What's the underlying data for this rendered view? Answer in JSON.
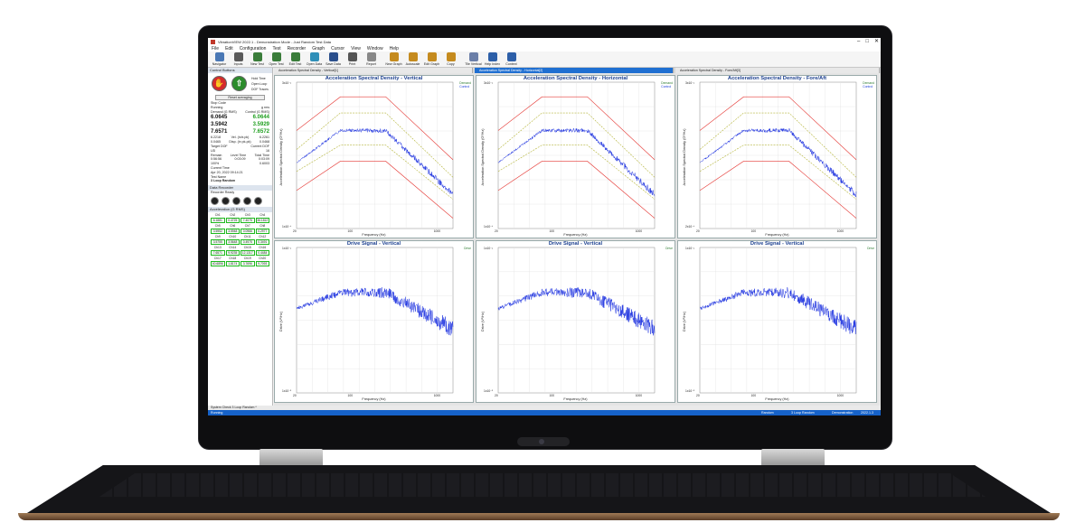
{
  "window": {
    "title": "VibrationVIEW 2022.1 - Demonstration Mode - Just Random Test Data",
    "controls": [
      "–",
      "□",
      "✕"
    ]
  },
  "menu": [
    "File",
    "Edit",
    "Configuration",
    "Test",
    "Recorder",
    "Graph",
    "Cursor",
    "View",
    "Window",
    "Help"
  ],
  "toolbar": [
    {
      "label": "Navigator",
      "icon": "navigator-icon",
      "color": "#4a78b5"
    },
    {
      "label": "Inputs",
      "icon": "inputs-icon",
      "color": "#5a5a5a"
    },
    {
      "label": "New Test",
      "icon": "new-test-icon",
      "color": "#3a7d3a"
    },
    {
      "label": "Open Test",
      "icon": "open-test-icon",
      "color": "#3a7d3a"
    },
    {
      "label": "Edit Test",
      "icon": "edit-test-icon",
      "color": "#3a7d3a"
    },
    {
      "label": "Open Data",
      "icon": "open-data-icon",
      "color": "#2f8fb8"
    },
    {
      "label": "Save Data",
      "icon": "save-data-icon",
      "color": "#2b4f8c"
    },
    {
      "label": "Print",
      "icon": "print-icon",
      "color": "#555"
    },
    {
      "label": "Report",
      "icon": "report-icon",
      "color": "#888"
    },
    {
      "label": "New Graph",
      "icon": "new-graph-icon",
      "color": "#c58b1e"
    },
    {
      "label": "Autoscale",
      "icon": "autoscale-icon",
      "color": "#c58b1e"
    },
    {
      "label": "Edit Graph",
      "icon": "edit-graph-icon",
      "color": "#c58b1e"
    },
    {
      "label": "Copy",
      "icon": "copy-icon",
      "color": "#c58b1e"
    },
    {
      "label": "Tile Vertical",
      "icon": "tile-vertical-icon",
      "color": "#6b7fa8"
    },
    {
      "label": "Help Index",
      "icon": "help-index-icon",
      "color": "#2d5fa8"
    },
    {
      "label": "Context",
      "icon": "context-help-icon",
      "color": "#2d5fa8"
    }
  ],
  "left_panel": {
    "header": "Control Buttons",
    "options": [
      "Hold Time",
      "Open Loop",
      "DOF Traces"
    ],
    "reset_label": "Reset averaging",
    "stop_code_label": "Stop Code",
    "status": "Running",
    "status_unit": "g rms",
    "col_demand": "Demand (G RMS)",
    "col_control": "Control (G RMS)",
    "rows": [
      {
        "demand": "6.0645",
        "control": "6.0644"
      },
      {
        "demand": "3.5942",
        "control": "3.5929"
      },
      {
        "demand": "7.6571",
        "control": "7.6572"
      }
    ],
    "stats": [
      [
        "6.2218",
        "Vel. (in/s pk)",
        "6.2261"
      ],
      [
        "0.0465",
        "Disp. (in pk-pk)",
        "0.0468"
      ]
    ],
    "dof_label": "Target DOF",
    "dof_value": "Current DOF",
    "dof_ux": "UD",
    "dof_n": "16",
    "time_headers": [
      "Remain",
      "Level Time",
      "Total Time"
    ],
    "time_values": [
      "0:56:56",
      "0:03:09",
      "0:03:09"
    ],
    "level_pct": "100%",
    "level_value": "0.6003",
    "current_time_label": "Current Time",
    "current_time": "Apr 20, 2022 09:14:21",
    "test_name_label": "Test Name",
    "test_name": "3 Loop Random",
    "recorder_header": "Data Recorder",
    "recorder_status": "Recorder Ready",
    "accel_header": "Acceleration (G RMS)",
    "channels": [
      {
        "ch": "Ch1",
        "val": "6.1881"
      },
      {
        "ch": "Ch2",
        "val": "0.4725"
      },
      {
        "ch": "Ch3",
        "val": "7.4075"
      },
      {
        "ch": "Ch4",
        "val": "36.1812"
      },
      {
        "ch": "Ch5",
        "val": "3.5952"
      },
      {
        "ch": "Ch6",
        "val": "3.5948"
      },
      {
        "ch": "Ch7",
        "val": "0.0966"
      },
      {
        "ch": "Ch8",
        "val": "0.2977"
      },
      {
        "ch": "Ch9",
        "val": "3.5755"
      },
      {
        "ch": "Ch10",
        "val": "3.5648"
      },
      {
        "ch": "Ch11",
        "val": "0.4975"
      },
      {
        "ch": "Ch12",
        "val": "0.3491"
      },
      {
        "ch": "Ch13",
        "val": "7.6571"
      },
      {
        "ch": "Ch14",
        "val": "9.9235"
      },
      {
        "ch": "Ch15",
        "val": "12.1317"
      },
      {
        "ch": "Ch16",
        "val": "0.4484"
      },
      {
        "ch": "Ch17",
        "val": "40.6896"
      },
      {
        "ch": "Ch18",
        "val": "1.8174"
      },
      {
        "ch": "Ch19",
        "val": "3.7696"
      },
      {
        "ch": "Ch20",
        "val": "9.7093"
      }
    ]
  },
  "tabs": [
    {
      "label": "Acceleration Spectral Density - Vertical[1]"
    },
    {
      "label": "Acceleration Spectral Density - Horizontal[2]"
    },
    {
      "label": "Acceleration Spectral Density - Fore/Aft[3]"
    }
  ],
  "panes": [
    {
      "title": "Acceleration Spectral Density - Vertical",
      "legend": [
        "Demand",
        "Control"
      ],
      "ylabel": "Acceleration Spectral Density (G²/Hz)",
      "xlabel": "Frequency (Hz)",
      "ytick_top": "3x10⁻¹",
      "ytick_bottom": "1x10⁻⁴"
    },
    {
      "title": "Acceleration Spectral Density - Horizontal",
      "legend": [
        "Demand",
        "Control"
      ],
      "ylabel": "Acceleration Spectral Density (G²/Hz)",
      "xlabel": "Frequency (Hz)",
      "ytick_top": "3x10⁻¹",
      "ytick_bottom": "1x10⁻⁴"
    },
    {
      "title": "Acceleration Spectral Density - Fore/Aft",
      "legend": [
        "Demand",
        "Control"
      ],
      "ylabel": "Acceleration Spectral Density (G²/Hz)",
      "xlabel": "Frequency (Hz)",
      "ytick_top": "3x10⁻¹",
      "ytick_bottom": "2x10⁻⁴"
    },
    {
      "title": "Drive Signal - Vertical",
      "legend": [
        "Drive"
      ],
      "ylabel": "Drive (V²/Hz)",
      "xlabel": "Frequency (Hz)",
      "ytick_top": "1x10⁻¹",
      "ytick_bottom": "1x10⁻⁵"
    },
    {
      "title": "Drive Signal - Vertical",
      "legend": [
        "Drive"
      ],
      "ylabel": "Drive (V²/Hz)",
      "xlabel": "Frequency (Hz)",
      "ytick_top": "1x10⁻¹",
      "ytick_bottom": "1x10⁻⁵"
    },
    {
      "title": "Drive Signal - Vertical",
      "legend": [
        "Drive"
      ],
      "ylabel": "Drive (V²/Hz)",
      "xlabel": "Frequency (Hz)",
      "ytick_top": "1x10⁻¹",
      "ytick_bottom": "1x10⁻⁵"
    }
  ],
  "xticks": [
    "20",
    "100",
    "1000"
  ],
  "statusbar": {
    "top": "System Check   3 Loop Random *",
    "left": "Running",
    "mode": "Random",
    "test": "3 Loop Random",
    "app": "Demonstration",
    "version": "2022.1.3"
  },
  "colors": {
    "abort": "#e53935",
    "tolerance": "#b5b53a",
    "control": "#1a2fe0",
    "accent": "#1662c9"
  }
}
